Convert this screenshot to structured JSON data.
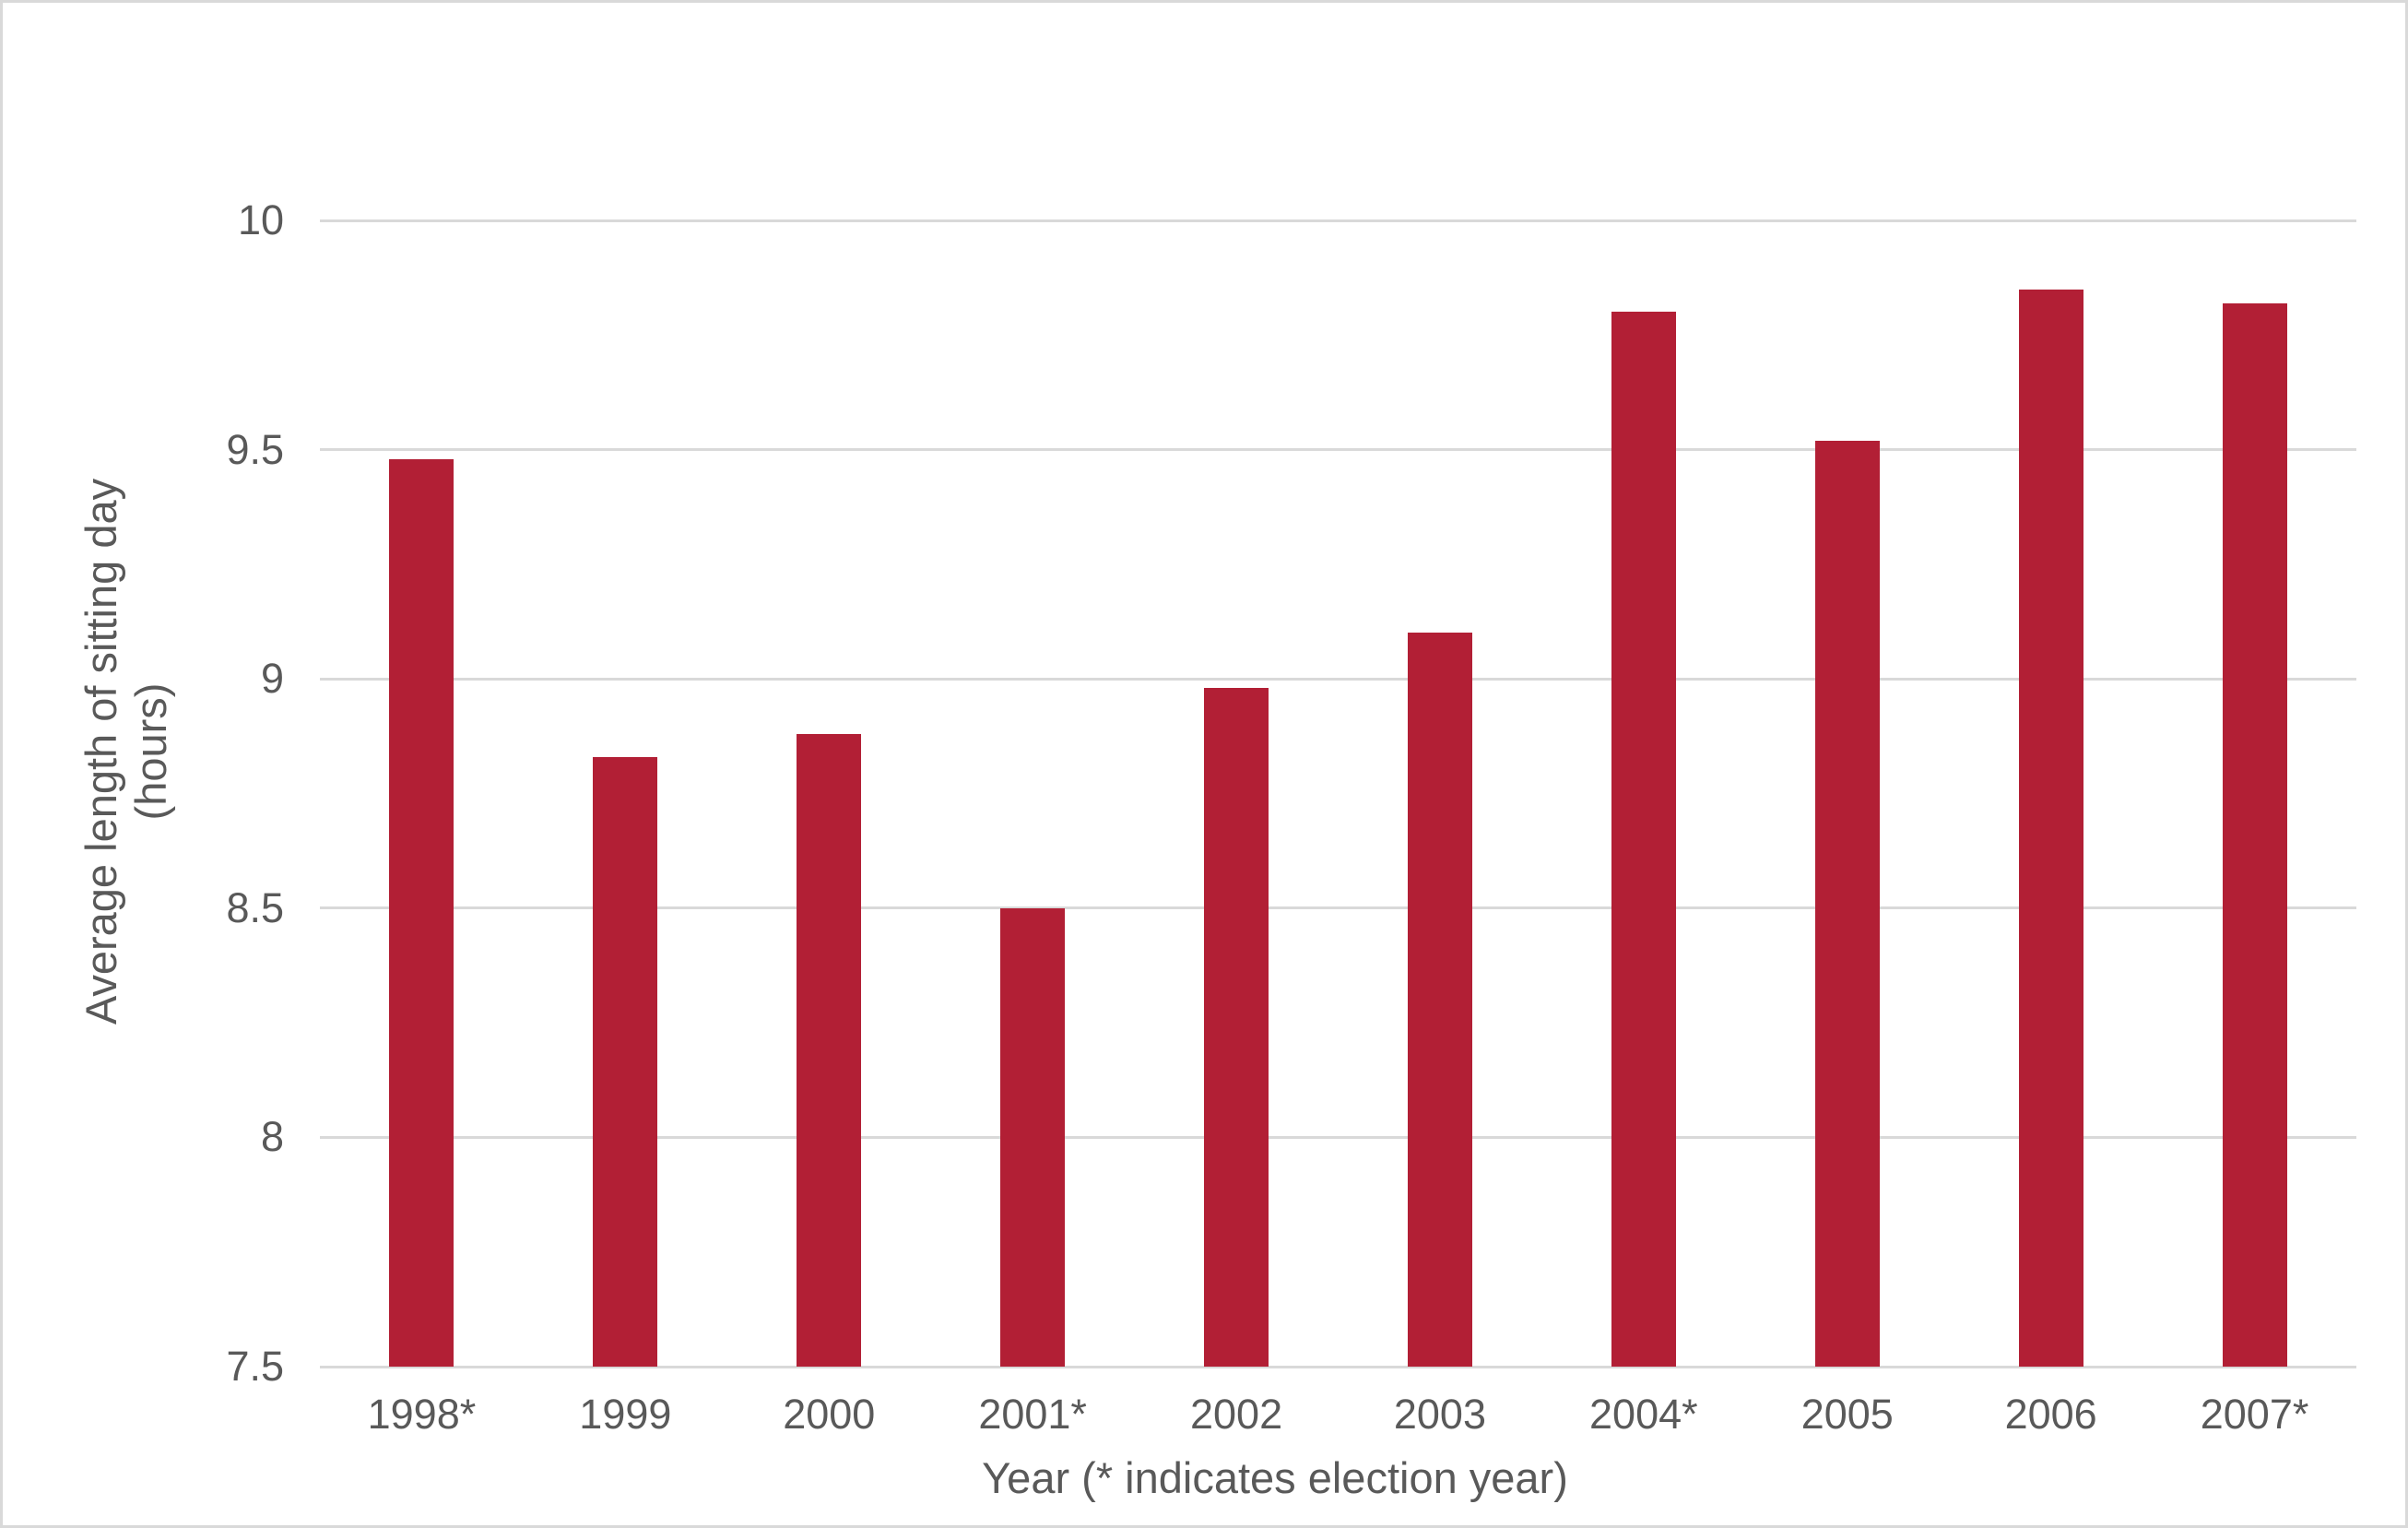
{
  "chart_data": {
    "type": "bar",
    "title": "",
    "categories": [
      "1998*",
      "1999",
      "2000",
      "2001*",
      "2002",
      "2003",
      "2004*",
      "2005",
      "2006",
      "2007*"
    ],
    "values": [
      9.48,
      8.83,
      8.88,
      8.5,
      8.98,
      9.1,
      9.8,
      9.52,
      9.85,
      9.82
    ],
    "xlabel": "Year (* indicates election year)",
    "ylabel_line1": "Average length of sitting day",
    "ylabel_line2": "(hours)",
    "ylim": [
      7.5,
      10
    ],
    "yticks": [
      "7.5",
      "8",
      "8.5",
      "9",
      "9.5",
      "10"
    ],
    "grid": true,
    "legend": "none",
    "bar_color": "#b21f35",
    "gridline_color": "#d9d9d9",
    "axis_text_color": "#595959",
    "frame_border_color": "#d9d9d9",
    "background_color": "#ffffff"
  }
}
